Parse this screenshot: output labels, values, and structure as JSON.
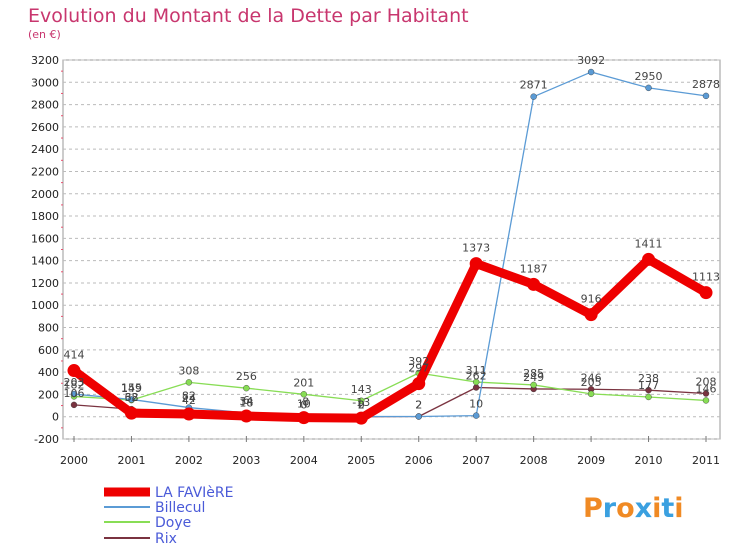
{
  "chart_data": {
    "type": "line",
    "title": "Evolution du Montant de la Dette par Habitant",
    "subtitle": "(en €)",
    "categories": [
      "2000",
      "2001",
      "2002",
      "2003",
      "2004",
      "2005",
      "2006",
      "2007",
      "2008",
      "2009",
      "2010",
      "2011"
    ],
    "ylim": [
      -200,
      3200
    ],
    "yticks": [
      -200,
      0,
      200,
      400,
      600,
      800,
      1000,
      1200,
      1400,
      1600,
      1800,
      2000,
      2200,
      2400,
      2600,
      2800,
      3000,
      3200
    ],
    "grid": "horizontal-dashed",
    "legend_position": "bottom-left",
    "series": [
      {
        "name": "LA FAVIèRE",
        "color": "#ee0000",
        "values": [
          414,
          32,
          24,
          6,
          -8,
          -13,
          297,
          1373,
          1187,
          916,
          1411,
          1113
        ]
      },
      {
        "name": "Billecul",
        "color": "#5b9bd5",
        "values": [
          203,
          155,
          82,
          34,
          10,
          2,
          2,
          10,
          2871,
          3092,
          2950,
          2878
        ]
      },
      {
        "name": "Doye",
        "color": "#88dd55",
        "values": [
          182,
          149,
          308,
          256,
          201,
          143,
          392,
          311,
          285,
          205,
          177,
          146
        ]
      },
      {
        "name": "Rix",
        "color": "#7a3340",
        "values": [
          106,
          68,
          42,
          18,
          0,
          0,
          2,
          262,
          249,
          246,
          238,
          208
        ]
      }
    ]
  },
  "logo": {
    "letters": [
      "P",
      "r",
      "o",
      "x",
      "i",
      "t",
      "i"
    ],
    "colors": [
      "#f08a24",
      "#3aa0e0",
      "#f08a24",
      "#3aa0e0",
      "#f08a24",
      "#3aa0e0",
      "#f08a24"
    ]
  }
}
